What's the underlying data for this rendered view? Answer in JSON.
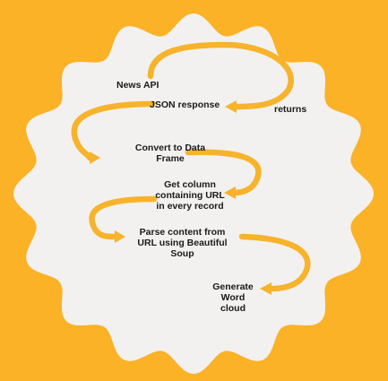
{
  "diagram": {
    "colors": {
      "background": "#FBB226",
      "badge": "#F2F1EF",
      "arrow": "#F7B32B",
      "text": "#1a1a1a"
    },
    "steps": [
      {
        "text": "News API"
      },
      {
        "text": "JSON response"
      },
      {
        "text": "returns"
      },
      {
        "text": "Convert to Data\nFrame"
      },
      {
        "text": "Get column\ncontaining URL\nin every record"
      },
      {
        "text": "Parse content from\nURL using Beautiful\nSoup"
      },
      {
        "text": "Generate\nWord\ncloud"
      }
    ]
  }
}
